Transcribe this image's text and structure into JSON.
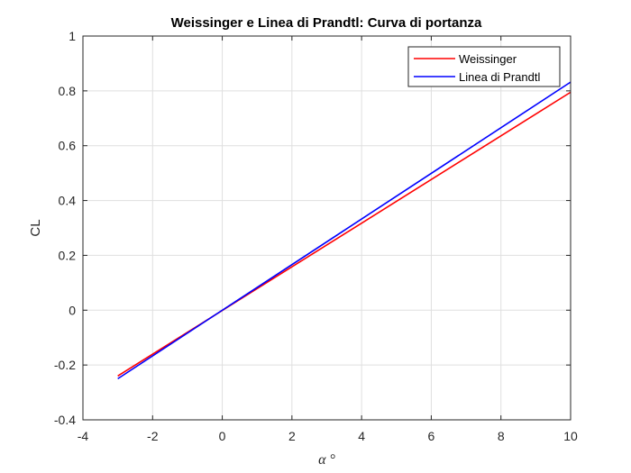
{
  "chart_data": {
    "type": "line",
    "title": "Weissinger e Linea di Prandtl: Curva di portanza",
    "xlabel": "α °",
    "ylabel": "CL",
    "xlim": [
      -4,
      10
    ],
    "ylim": [
      -0.4,
      1
    ],
    "xticks": [
      -4,
      -2,
      0,
      2,
      4,
      6,
      8,
      10
    ],
    "yticks": [
      -0.4,
      -0.2,
      0,
      0.2,
      0.4,
      0.6,
      0.8,
      1
    ],
    "xtick_labels": [
      "-4",
      "-2",
      "0",
      "2",
      "4",
      "6",
      "8",
      "10"
    ],
    "ytick_labels": [
      "-0.4",
      "-0.2",
      "0",
      "0.2",
      "0.4",
      "0.6",
      "0.8",
      "1"
    ],
    "grid": true,
    "legend_position": "top-right",
    "series": [
      {
        "name": "Weissinger",
        "color": "#ff0000",
        "x": [
          -3,
          10
        ],
        "y": [
          -0.24,
          0.795
        ]
      },
      {
        "name": "Linea di Prandtl",
        "color": "#0000ff",
        "x": [
          -3,
          10
        ],
        "y": [
          -0.25,
          0.832
        ]
      }
    ]
  }
}
